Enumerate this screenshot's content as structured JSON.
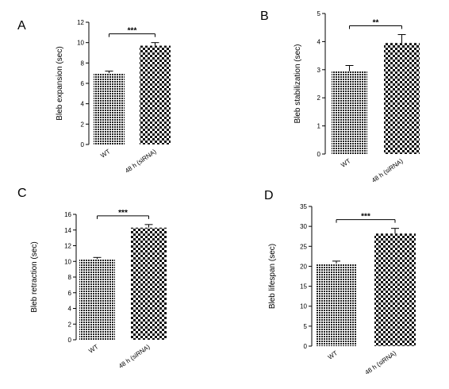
{
  "chart_data": [
    {
      "panel": "A",
      "type": "bar",
      "categories": [
        "WT",
        "48 h (siRNA)"
      ],
      "values": [
        7.0,
        9.7
      ],
      "errors": [
        0.2,
        0.3
      ],
      "significance": "***",
      "ylabel": "Bleb expansion (sec)",
      "ylim": [
        0,
        12
      ],
      "yticks": [
        0,
        2,
        4,
        6,
        8,
        10,
        12
      ],
      "patterns": [
        "dots",
        "checker"
      ]
    },
    {
      "panel": "B",
      "type": "bar",
      "categories": [
        "WT",
        "48 h (siRNA)"
      ],
      "values": [
        2.95,
        3.95
      ],
      "errors": [
        0.2,
        0.3
      ],
      "significance": "**",
      "ylabel": "Bleb stabilization (sec)",
      "ylim": [
        0,
        5
      ],
      "yticks": [
        0,
        1,
        2,
        3,
        4,
        5
      ],
      "patterns": [
        "dots",
        "checker"
      ]
    },
    {
      "panel": "C",
      "type": "bar",
      "categories": [
        "WT",
        "48 h (siRNA)"
      ],
      "values": [
        10.3,
        14.3
      ],
      "errors": [
        0.2,
        0.4
      ],
      "significance": "***",
      "ylabel": "Bleb retraction (sec)",
      "ylim": [
        0,
        16
      ],
      "yticks": [
        0,
        2,
        4,
        6,
        8,
        10,
        12,
        14,
        16
      ],
      "patterns": [
        "dots",
        "checker"
      ]
    },
    {
      "panel": "D",
      "type": "bar",
      "categories": [
        "WT",
        "48 h (siRNA)"
      ],
      "values": [
        20.7,
        28.2
      ],
      "errors": [
        0.6,
        1.3
      ],
      "significance": "***",
      "ylabel": "Bleb lifespan (sec)",
      "ylim": [
        0,
        35
      ],
      "yticks": [
        0,
        5,
        10,
        15,
        20,
        25,
        30,
        35
      ],
      "patterns": [
        "dots",
        "checker"
      ]
    }
  ]
}
